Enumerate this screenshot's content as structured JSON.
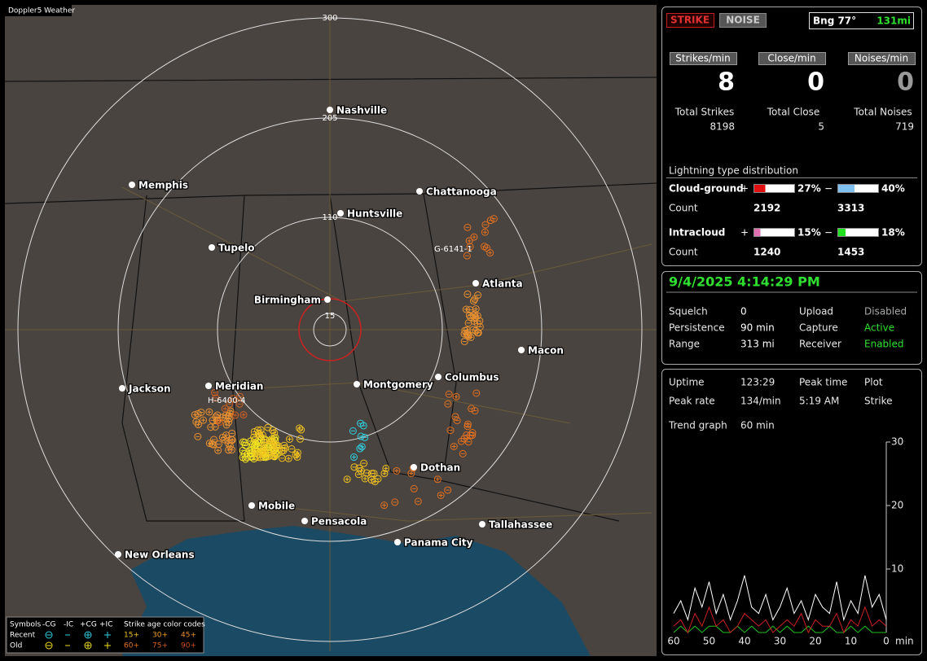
{
  "title": "Doppler5 Weather",
  "map": {
    "ring_labels": [
      "300",
      "205",
      "110",
      "15"
    ],
    "cities": [
      "Nashville",
      "Memphis",
      "Chattanooga",
      "Huntsville",
      "Tupelo",
      "Atlanta",
      "Birmingham",
      "Macon",
      "Jackson",
      "Meridian",
      "Montgomery",
      "Columbus",
      "Dothan",
      "Mobile",
      "Pensacola",
      "Panama City",
      "Tallahassee",
      "New Orleans"
    ],
    "sensors": [
      "G-6141-1",
      "H-6400-4"
    ]
  },
  "legend": {
    "header": [
      "Symbols",
      "-CG",
      "-IC",
      "+CG",
      "+IC",
      "Strike age color codes"
    ],
    "recent": {
      "label": "Recent",
      "ages": [
        "15+",
        "30+",
        "45+"
      ]
    },
    "old": {
      "label": "Old",
      "ages": [
        "60+",
        "75+",
        "90+"
      ]
    }
  },
  "status": {
    "buttons": [
      "STRIKE",
      "NOISE"
    ],
    "bearing": "Bng 77°",
    "distance": "131mi"
  },
  "rates": [
    {
      "label": "Strikes/min",
      "value": 8
    },
    {
      "label": "Close/min",
      "value": 0
    },
    {
      "label": "Noises/min",
      "value": 0
    }
  ],
  "totals": [
    {
      "label": "Total Strikes",
      "value": 8198
    },
    {
      "label": "Total Close",
      "value": 5
    },
    {
      "label": "Total Noises",
      "value": 719
    }
  ],
  "distribution": {
    "title": "Lightning type distribution",
    "signs": [
      "+",
      "−"
    ],
    "count_label": "Count",
    "rows": [
      {
        "label": "Cloud-ground",
        "positive": {
          "value": 27,
          "label": "27%"
        },
        "negative": {
          "value": 40,
          "label": "40%"
        },
        "counts": [
          2192,
          3313
        ]
      },
      {
        "label": "Intracloud",
        "positive": {
          "value": 15,
          "label": "15%"
        },
        "negative": {
          "value": 18,
          "label": "18%"
        },
        "counts": [
          1240,
          1453
        ]
      }
    ]
  },
  "clock": "9/4/2025 4:14:29 PM",
  "settings": [
    [
      "Squelch",
      "0",
      "Upload",
      "Disabled"
    ],
    [
      "Persistence",
      "90 min",
      "Capture",
      "Active"
    ],
    [
      "Range",
      "313 mi",
      "Receiver",
      "Enabled"
    ]
  ],
  "stats": [
    [
      "Uptime",
      "123:29",
      "Peak time",
      "Plot"
    ],
    [
      "Peak rate",
      "134/min",
      "5:19 AM",
      "Strike"
    ]
  ],
  "trend_label": "Trend graph",
  "trend_span": "60 min",
  "trend": {
    "xlim": [
      60,
      0
    ],
    "xticks": [
      60,
      50,
      40,
      30,
      20,
      10,
      0
    ],
    "x_unit": "min",
    "ylim": [
      0,
      30
    ],
    "yticks": [
      10,
      20,
      30
    ],
    "x": [
      60,
      58,
      56,
      54,
      52,
      50,
      48,
      46,
      44,
      42,
      40,
      38,
      36,
      34,
      32,
      30,
      28,
      26,
      24,
      22,
      20,
      18,
      16,
      14,
      12,
      10,
      8,
      6,
      4,
      2,
      0
    ],
    "series": [
      {
        "color": "#ffffff",
        "values": [
          3,
          5,
          2,
          7,
          4,
          8,
          3,
          6,
          2,
          5,
          9,
          4,
          3,
          6,
          2,
          4,
          7,
          3,
          5,
          2,
          6,
          4,
          3,
          8,
          2,
          5,
          3,
          9,
          4,
          6,
          2
        ]
      },
      {
        "color": "#cc2020",
        "values": [
          1,
          2,
          0,
          3,
          1,
          4,
          1,
          2,
          0,
          1,
          3,
          2,
          1,
          2,
          0,
          1,
          2,
          1,
          3,
          0,
          2,
          1,
          1,
          3,
          0,
          2,
          1,
          4,
          1,
          2,
          1
        ]
      },
      {
        "color": "#20c020",
        "values": [
          0,
          1,
          0,
          1,
          0,
          1,
          1,
          0,
          0,
          1,
          0,
          1,
          0,
          0,
          1,
          0,
          1,
          0,
          0,
          1,
          0,
          0,
          1,
          0,
          0,
          1,
          0,
          1,
          0,
          0,
          0
        ]
      }
    ]
  }
}
